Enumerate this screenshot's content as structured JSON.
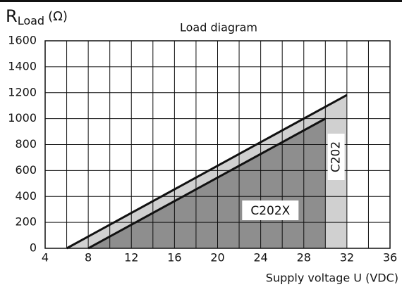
{
  "chart_data": {
    "type": "area",
    "title": "Load diagram",
    "y_label": {
      "symbol": "R",
      "subscript": "Load",
      "unit": "(Ω)"
    },
    "x_label": "Supply voltage U (VDC)",
    "xlim": [
      4,
      36
    ],
    "xticks": [
      4,
      8,
      12,
      16,
      20,
      24,
      28,
      32,
      36
    ],
    "xminor": [
      6,
      10,
      14,
      18,
      22,
      26,
      30,
      34
    ],
    "ylim": [
      0,
      1600
    ],
    "yticks": [
      0,
      200,
      400,
      600,
      800,
      1000,
      1200,
      1400,
      1600
    ],
    "grid": true,
    "series": [
      {
        "name": "C202",
        "color": "#d0d0d0",
        "x": [
          6,
          32,
          32
        ],
        "values": [
          0,
          1182,
          0
        ]
      },
      {
        "name": "C202X",
        "color": "#8e8e8e",
        "x": [
          8,
          30,
          30
        ],
        "values": [
          0,
          1000,
          0
        ]
      }
    ]
  }
}
